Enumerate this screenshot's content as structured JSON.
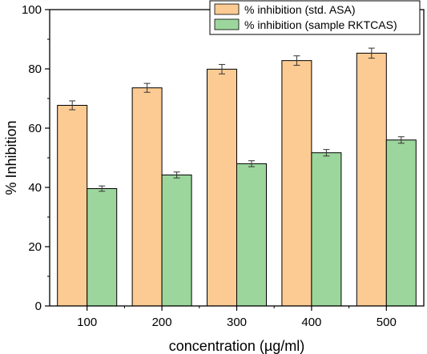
{
  "chart_data": {
    "type": "bar",
    "categories": [
      "100",
      "200",
      "300",
      "400",
      "500"
    ],
    "series": [
      {
        "name": "% inhibition (std. ASA)",
        "values": [
          67.7,
          73.6,
          79.9,
          82.8,
          85.3
        ],
        "errors": [
          1.5,
          1.5,
          1.6,
          1.6,
          1.7
        ],
        "color": "#fccb93"
      },
      {
        "name": "% inhibition (sample RKTCAS)",
        "values": [
          39.6,
          44.2,
          48.0,
          51.7,
          56.0
        ],
        "errors": [
          0.9,
          1.0,
          1.0,
          1.1,
          1.1
        ],
        "color": "#9cd69c"
      }
    ],
    "xlabel": "concentration (µg/ml)",
    "ylabel": "% Inhibition",
    "ylim": [
      0,
      100
    ],
    "yticks": [
      "0",
      "20",
      "40",
      "60",
      "80",
      "100"
    ],
    "legend_position": "top-right",
    "grid": false
  }
}
